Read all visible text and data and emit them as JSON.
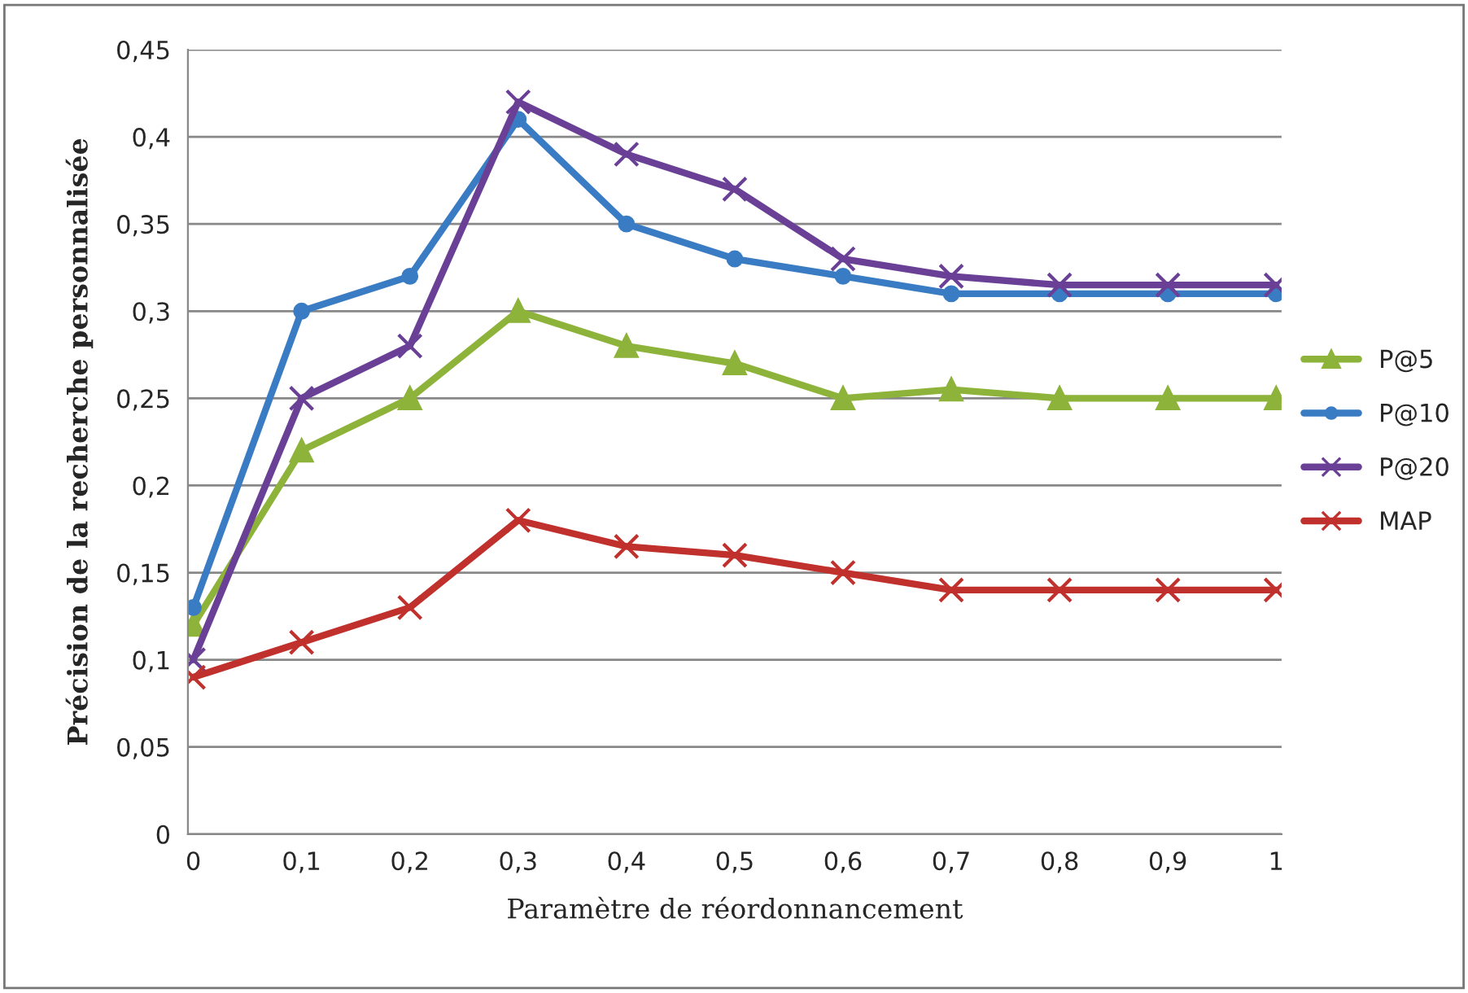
{
  "chart_data": {
    "type": "line",
    "xlabel": "Paramètre de réordonnancement",
    "ylabel": "Précision de la recherche personnalisée",
    "categories": [
      "0",
      "0,1",
      "0,2",
      "0,3",
      "0,4",
      "0,5",
      "0,6",
      "0,7",
      "0,8",
      "0,9",
      "1"
    ],
    "series": [
      {
        "name": "P@5",
        "color": "#8db33a",
        "marker": "triangle",
        "values": [
          0.12,
          0.22,
          0.25,
          0.3,
          0.28,
          0.27,
          0.25,
          0.255,
          0.25,
          0.25,
          0.25
        ]
      },
      {
        "name": "P@10",
        "color": "#3a7cc4",
        "marker": "circle",
        "values": [
          0.13,
          0.3,
          0.32,
          0.41,
          0.35,
          0.33,
          0.32,
          0.31,
          0.31,
          0.31,
          0.31
        ]
      },
      {
        "name": "P@20",
        "color": "#6a3f96",
        "marker": "cross",
        "values": [
          0.1,
          0.25,
          0.28,
          0.42,
          0.39,
          0.37,
          0.33,
          0.32,
          0.315,
          0.315,
          0.315
        ]
      },
      {
        "name": "MAP",
        "color": "#c0302c",
        "marker": "cross",
        "values": [
          0.09,
          0.11,
          0.13,
          0.18,
          0.165,
          0.16,
          0.15,
          0.14,
          0.14,
          0.14,
          0.14
        ]
      }
    ],
    "ylim": [
      0,
      0.45
    ],
    "yticks": [
      0,
      {
        "value": 0.05,
        "label": "0,05"
      },
      {
        "value": 0.1,
        "label": "0,1"
      },
      {
        "value": 0.15,
        "label": "0,15"
      },
      {
        "value": 0.2,
        "label": "0,2"
      },
      {
        "value": 0.25,
        "label": "0,25"
      },
      {
        "value": 0.3,
        "label": "0,3"
      },
      {
        "value": 0.35,
        "label": "0,35"
      },
      {
        "value": 0.4,
        "label": "0,4"
      },
      {
        "value": 0.45,
        "label": "0,45"
      }
    ],
    "grid": "y",
    "legend": "right",
    "line_style": "solid"
  }
}
